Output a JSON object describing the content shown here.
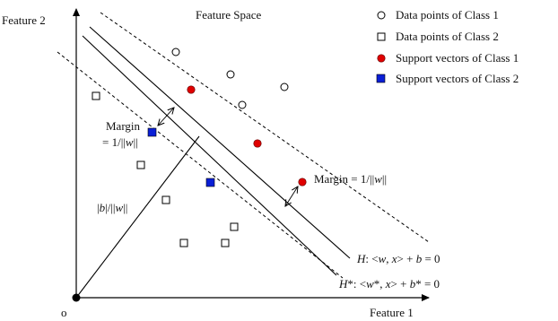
{
  "title": "Feature Space",
  "axes": {
    "y_label": "Feature 2",
    "x_label": "Feature 1",
    "origin_label": "o"
  },
  "legend": [
    {
      "symbol": "open-circle",
      "label": "Data points of Class 1"
    },
    {
      "symbol": "open-square",
      "label": "Data points of Class 2"
    },
    {
      "symbol": "red-circle",
      "label": "Support vectors of Class 1"
    },
    {
      "symbol": "blue-square",
      "label": "Support vectors of Class 2"
    }
  ],
  "annotations": {
    "margin_left_line1": "Margin",
    "margin_left_eq": "= 1/||",
    "margin_left_w": "w",
    "margin_left_end": "||",
    "margin_right_prefix": "Margin = 1/||",
    "margin_right_w": "w",
    "margin_right_end": "||",
    "bias_open": "|",
    "bias_b": "b",
    "bias_mid": "|/||",
    "bias_w": "w",
    "bias_end": "||"
  },
  "hyperplanes": {
    "h_name": "H",
    "h_colon": ": <",
    "h_w": "w",
    "h_comma": ", ",
    "h_x": "x",
    "h_plus": "> + ",
    "h_b": "b",
    "h_eq": " = 0",
    "hs_name": "H",
    "hs_star_colon": "*: <",
    "hs_w": "w",
    "hs_star_comma": "*, ",
    "hs_x": "x",
    "hs_plus": "> + ",
    "hs_b": "b",
    "hs_star_eq": "* = 0"
  },
  "colors": {
    "axis": "#000000",
    "support_class1": "#e00000",
    "support_class2": "#0a1fd6",
    "outline": "#000000"
  }
}
